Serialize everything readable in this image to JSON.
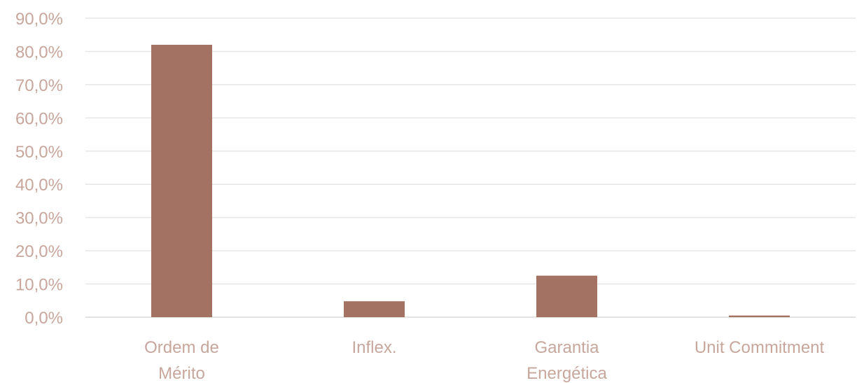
{
  "chart_data": {
    "type": "bar",
    "categories": [
      [
        "Ordem de",
        "Mérito"
      ],
      [
        "Inflex."
      ],
      [
        "Garantia",
        "Energética"
      ],
      [
        "Unit Commitment"
      ]
    ],
    "values": [
      82.0,
      4.8,
      12.5,
      0.5
    ],
    "ylim": [
      0,
      90
    ],
    "yticks": [
      0,
      10,
      20,
      30,
      40,
      50,
      60,
      70,
      80,
      90
    ],
    "ytick_labels": [
      "0,0%",
      "10,0%",
      "20,0%",
      "30,0%",
      "40,0%",
      "50,0%",
      "60,0%",
      "70,0%",
      "80,0%",
      "90,0%"
    ],
    "title": "",
    "xlabel": "",
    "ylabel": "",
    "grid": true,
    "legend": "none",
    "colors": {
      "bar": "#a47262",
      "grid": "#e6e6e6",
      "tick_text": "#c7a79c",
      "baseline": "#d9d9d9"
    }
  }
}
